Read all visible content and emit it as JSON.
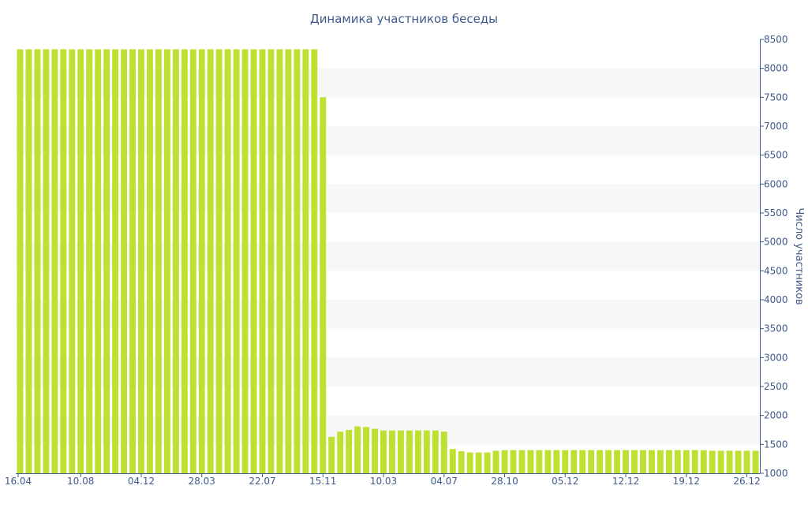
{
  "chart_data": {
    "type": "bar",
    "title": "Динамика участников беседы",
    "xlabel": "",
    "ylabel": "Число участников",
    "ylim": [
      1000,
      8500
    ],
    "yticks": [
      1000,
      1500,
      2000,
      2500,
      3000,
      3500,
      4000,
      4500,
      5000,
      5500,
      6000,
      6500,
      7000,
      7500,
      8000,
      8500
    ],
    "y_axis_side": "right",
    "grid": "alternating horizontal bands",
    "legend": "none",
    "bar_color": "#bde031",
    "band_color": "#f7f7f7",
    "axis_color": "#3f5a8a",
    "x_tick_labels": [
      {
        "index": 0,
        "label": "16.04"
      },
      {
        "index": 7,
        "label": "10.08"
      },
      {
        "index": 14,
        "label": "04.12"
      },
      {
        "index": 21,
        "label": "28.03"
      },
      {
        "index": 28,
        "label": "22.07"
      },
      {
        "index": 35,
        "label": "15.11"
      },
      {
        "index": 42,
        "label": "10.03"
      },
      {
        "index": 49,
        "label": "04.07"
      },
      {
        "index": 56,
        "label": "28.10"
      },
      {
        "index": 63,
        "label": "05.12"
      },
      {
        "index": 70,
        "label": "12.12"
      },
      {
        "index": 77,
        "label": "19.12"
      },
      {
        "index": 84,
        "label": "26.12"
      }
    ],
    "values": [
      8330,
      8330,
      8330,
      8330,
      8330,
      8330,
      8330,
      8330,
      8330,
      8330,
      8330,
      8330,
      8330,
      8330,
      8330,
      8330,
      8330,
      8330,
      8330,
      8330,
      8330,
      8330,
      8330,
      8330,
      8330,
      8330,
      8330,
      8330,
      8330,
      8330,
      8330,
      8330,
      8330,
      8330,
      8330,
      7500,
      1630,
      1720,
      1750,
      1810,
      1800,
      1770,
      1740,
      1740,
      1740,
      1740,
      1740,
      1740,
      1740,
      1720,
      1420,
      1380,
      1360,
      1360,
      1360,
      1390,
      1400,
      1400,
      1400,
      1400,
      1400,
      1400,
      1400,
      1400,
      1400,
      1400,
      1400,
      1400,
      1400,
      1400,
      1400,
      1400,
      1400,
      1400,
      1400,
      1400,
      1400,
      1400,
      1400,
      1400,
      1390,
      1390,
      1390,
      1390,
      1390,
      1390
    ]
  }
}
